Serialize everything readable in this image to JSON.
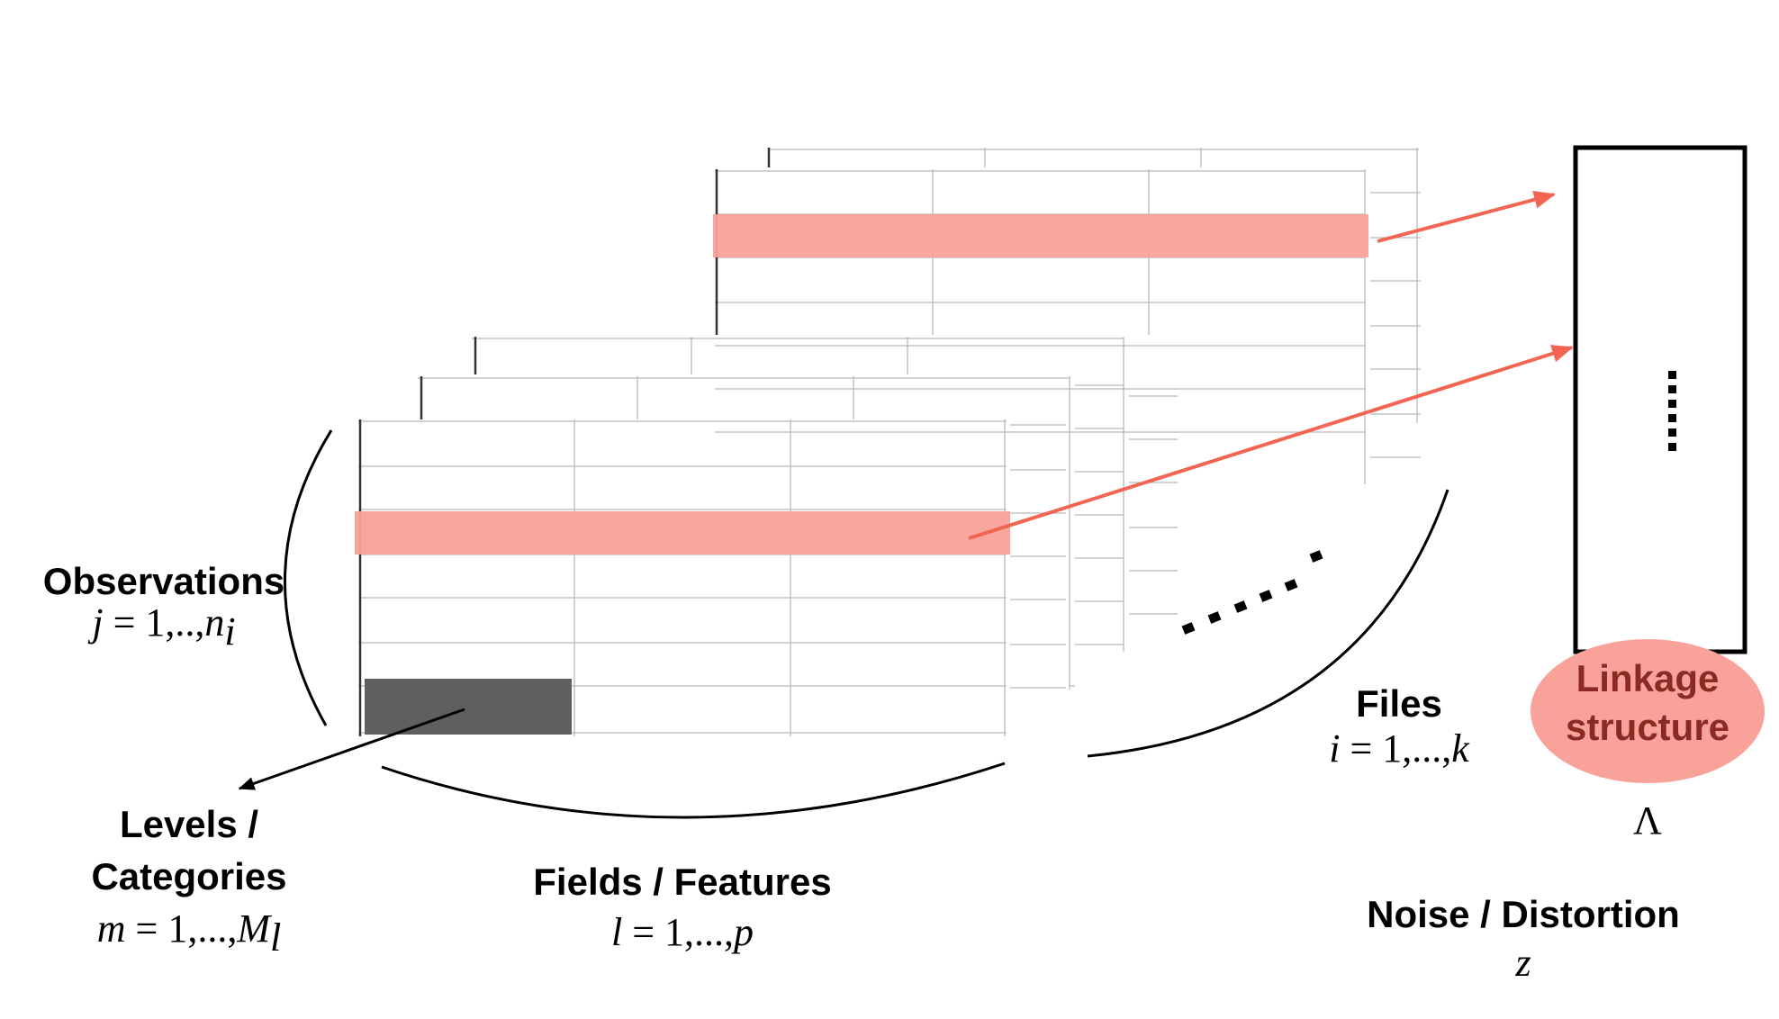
{
  "colors": {
    "record_highlight": "#f9a299",
    "arrow_red": "#f26552",
    "category_block": "#5f5f5f",
    "linkage_ellipse": "#f9a299",
    "linkage_text": "#8b2a22"
  },
  "labels": {
    "observations": {
      "title": "Observations",
      "math_var": "j",
      "math_eq": " = 1,..,",
      "math_sym": "n",
      "math_sub": "i"
    },
    "levels": {
      "title_line1": "Levels /",
      "title_line2": "Categories",
      "math_var": "m",
      "math_eq": " = 1,...,",
      "math_sym": "M",
      "math_sub": "l"
    },
    "fields": {
      "title": "Fields / Features",
      "math_var": "l",
      "math_eq": " = 1,...,",
      "math_sym": "p"
    },
    "files": {
      "title": "Files",
      "math_var": "i",
      "math_eq": " = 1,...,",
      "math_sym": "k"
    },
    "linkage": {
      "line1": "Linkage",
      "line2": "structure",
      "symbol": "Λ"
    },
    "noise": {
      "title": "Noise / Distortion",
      "symbol": "z"
    }
  }
}
